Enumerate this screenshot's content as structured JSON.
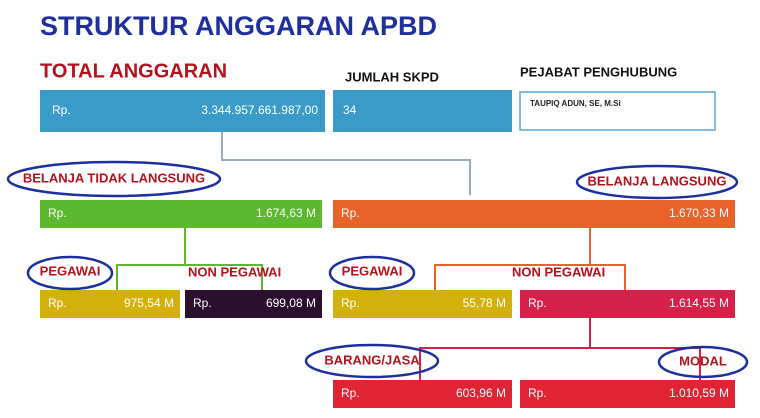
{
  "header": {
    "title": "STRUKTUR ANGGARAN APBD"
  },
  "total": {
    "label": "TOTAL ANGGARAN",
    "currency": "Rp.",
    "amount": "3.344.957.661.987,00"
  },
  "skpd": {
    "label": "JUMLAH SKPD",
    "value": "34"
  },
  "pejabat": {
    "label": "PEJABAT PENGHUBUNG",
    "value": "TAUPIQ ADUN, SE, M.Si"
  },
  "nodes": [
    {
      "label": "BELANJA TIDAK LANGSUNG",
      "currency": "Rp.",
      "amount": "1.674,63 M"
    },
    {
      "label": "BELANJA LANGSUNG",
      "currency": "Rp.",
      "amount": "1.670,33 M"
    },
    {
      "label": "PEGAWAI",
      "currency": "Rp.",
      "amount": "975,54 M"
    },
    {
      "label": "NON PEGAWAI",
      "currency": "Rp.",
      "amount": "699,08 M"
    },
    {
      "label": "PEGAWAI",
      "currency": "Rp.",
      "amount": "55,78 M"
    },
    {
      "label": "NON PEGAWAI",
      "currency": "Rp.",
      "amount": "1.614,55 M"
    },
    {
      "label": "BARANG/JASA",
      "currency": "Rp.",
      "amount": "603,96 M"
    },
    {
      "label": "MODAL",
      "currency": "Rp.",
      "amount": "1.010,59 M"
    }
  ]
}
